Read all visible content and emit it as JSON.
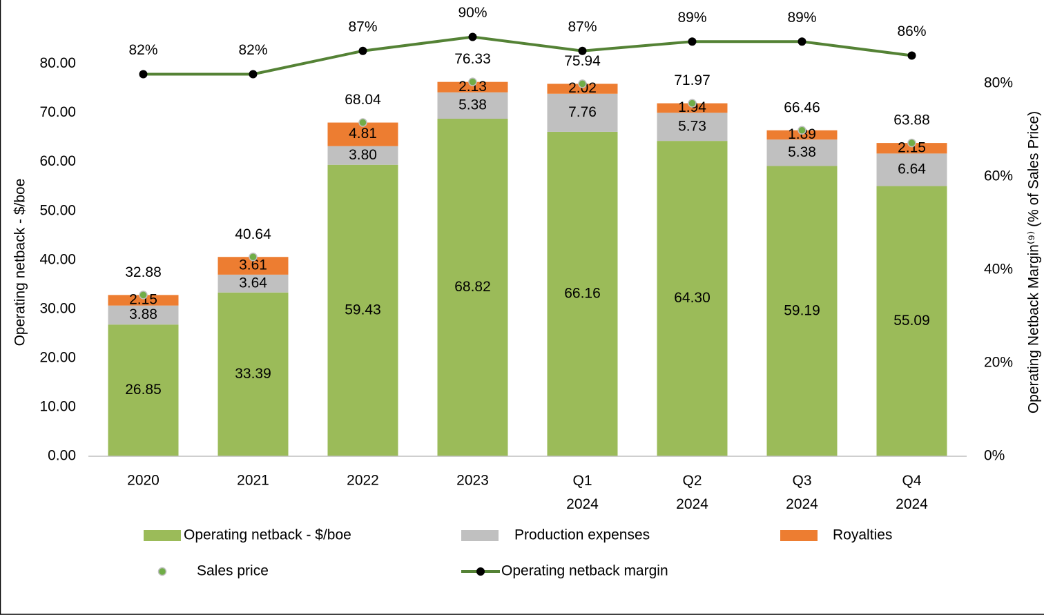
{
  "chart_data": {
    "type": "bar",
    "categories": [
      "2020",
      "2021",
      "2022",
      "2023",
      "Q1 2024",
      "Q2 2024",
      "Q3 2024",
      "Q4 2024"
    ],
    "y_label": "Operating netback - $/boe",
    "y2_label": "Operating Netback Margin⁽⁹⁾ (% of Sales Price)",
    "ylim": [
      0,
      95
    ],
    "yticks": [
      {
        "value": 0,
        "label": "0.00"
      },
      {
        "value": 10,
        "label": "10.00"
      },
      {
        "value": 20,
        "label": "20.00"
      },
      {
        "value": 30,
        "label": "30.00"
      },
      {
        "value": 40,
        "label": "40.00"
      },
      {
        "value": 50,
        "label": "50.00"
      },
      {
        "value": 60,
        "label": "60.00"
      },
      {
        "value": 70,
        "label": "70.00"
      },
      {
        "value": 80,
        "label": "80.00"
      }
    ],
    "y2lim": [
      0,
      100
    ],
    "y2ticks": [
      {
        "value": 0,
        "label": "0%"
      },
      {
        "value": 20,
        "label": "20%"
      },
      {
        "value": 40,
        "label": "40%"
      },
      {
        "value": 60,
        "label": "60%"
      },
      {
        "value": 80,
        "label": "80%"
      }
    ],
    "grid": false,
    "legend": "bottom",
    "series": [
      {
        "name": "Operating netback - $/boe",
        "type": "bar",
        "color": "#9bbb59",
        "values": [
          26.85,
          33.39,
          59.43,
          68.82,
          66.16,
          64.3,
          59.19,
          55.09
        ],
        "value_labels": [
          "26.85",
          "33.39",
          "59.43",
          "68.82",
          "66.16",
          "64.30",
          "59.19",
          "55.09"
        ]
      },
      {
        "name": "Production expenses",
        "type": "bar",
        "color": "#c0c0c0",
        "values": [
          3.88,
          3.64,
          3.8,
          5.38,
          7.76,
          5.73,
          5.38,
          6.64
        ],
        "value_labels": [
          "3.88",
          "3.64",
          "3.80",
          "5.38",
          "7.76",
          "5.73",
          "5.38",
          "6.64"
        ]
      },
      {
        "name": "Royalties",
        "type": "bar",
        "color": "#ed7d31",
        "values": [
          2.15,
          3.61,
          4.81,
          2.13,
          2.02,
          1.94,
          1.89,
          2.15
        ],
        "value_labels": [
          "2.15",
          "3.61",
          "4.81",
          "2.13",
          "2.02",
          "1.94",
          "1.89",
          "2.15"
        ]
      },
      {
        "name": "Sales price",
        "type": "scatter",
        "color": "#70ad47",
        "values": [
          32.88,
          40.64,
          68.04,
          76.33,
          75.94,
          71.97,
          66.46,
          63.88
        ],
        "value_labels": [
          "32.88",
          "40.64",
          "68.04",
          "76.33",
          "75.94",
          "71.97",
          "66.46",
          "63.88"
        ]
      },
      {
        "name": "Operating netback margin",
        "type": "line",
        "axis": "y2",
        "color": "#548235",
        "values": [
          82,
          82,
          87,
          90,
          87,
          89,
          89,
          86
        ],
        "value_labels": [
          "82%",
          "82%",
          "87%",
          "90%",
          "87%",
          "89%",
          "89%",
          "86%"
        ]
      }
    ]
  }
}
